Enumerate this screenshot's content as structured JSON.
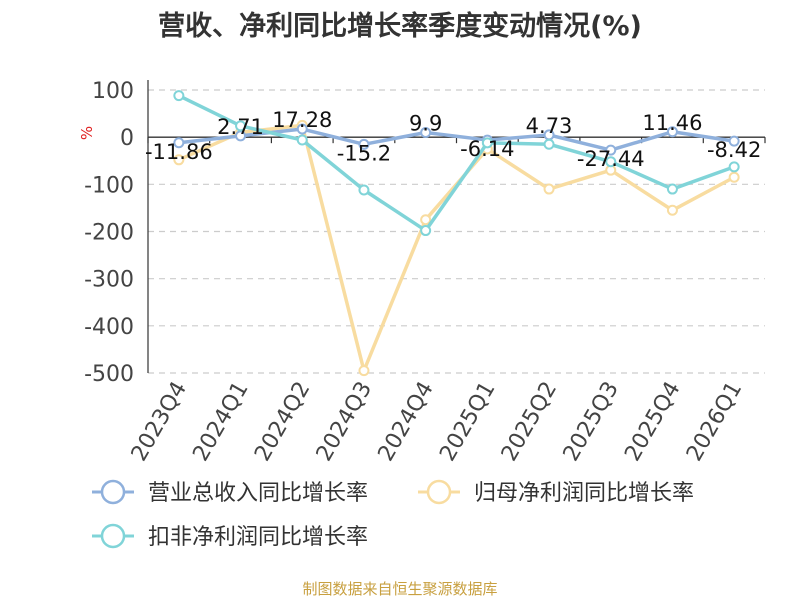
{
  "chart_data": {
    "type": "line",
    "title": "营收、净利同比增长率季度变动情况(%)",
    "ylabel": "%",
    "ylim": [
      -500,
      100
    ],
    "yticks": [
      100,
      0,
      -100,
      -200,
      -300,
      -400,
      -500
    ],
    "grid": true,
    "legend_position": "bottom",
    "categories": [
      "2023Q4",
      "2024Q1",
      "2024Q2",
      "2024Q3",
      "2024Q4",
      "2025Q1",
      "2025Q2",
      "2025Q3",
      "2025Q4",
      "2026Q1"
    ],
    "series": [
      {
        "name": "营业总收入同比增长率",
        "color": "#8fb0dc",
        "values": [
          -11.86,
          2.71,
          17.28,
          -15.2,
          9.9,
          -6.14,
          4.73,
          -27.44,
          11.46,
          -8.42
        ],
        "labels": [
          "-11.86",
          "2.71",
          "17.28",
          "-15.2",
          "9.9",
          "-6.14",
          "4.73",
          "-27.44",
          "11.46",
          "-8.42"
        ]
      },
      {
        "name": "归母净利润同比增长率",
        "color": "#f8dca0",
        "values": [
          -48,
          10,
          25,
          -495,
          -175,
          -25,
          -110,
          -70,
          -155,
          -85
        ]
      },
      {
        "name": "扣非净利润同比增长率",
        "color": "#80d4d8",
        "values": [
          88,
          24,
          -6,
          -112,
          -198,
          -12,
          -15,
          -52,
          -110,
          -63
        ]
      }
    ]
  },
  "footer": {
    "source": "制图数据来自恒生聚源数据库"
  }
}
